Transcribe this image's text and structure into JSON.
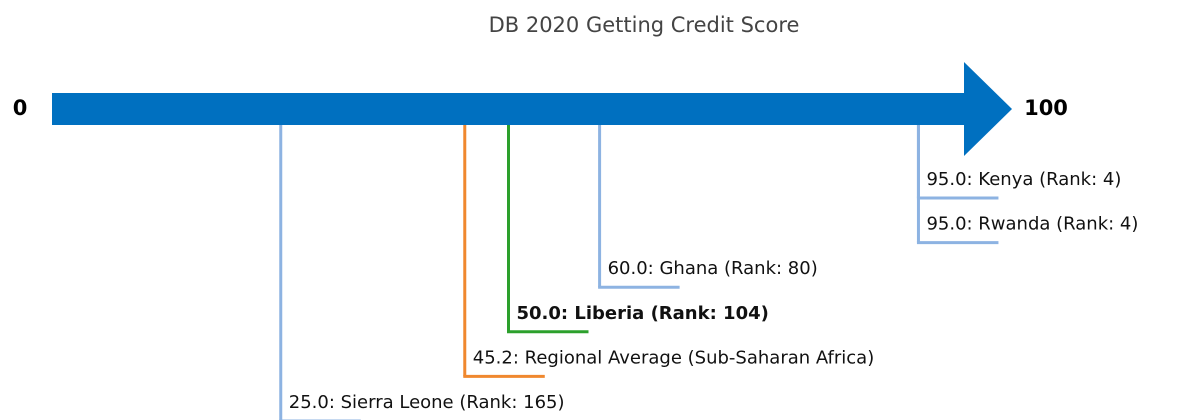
{
  "chart_data": {
    "type": "number-line",
    "title": "DB 2020 Getting Credit Score",
    "xlim": [
      0,
      100
    ],
    "xticks": [
      0,
      100
    ],
    "axis_color": "#0070c0",
    "points": [
      {
        "label": "95.0: Kenya (Rank: 4)",
        "value": 95,
        "color": "#8db3e2",
        "bold": false
      },
      {
        "label": "95.0: Rwanda (Rank: 4)",
        "value": 95,
        "color": "#8db3e2",
        "bold": false
      },
      {
        "label": "60.0: Ghana (Rank: 80)",
        "value": 60,
        "color": "#8db3e2",
        "bold": false
      },
      {
        "label": "50.0: Liberia (Rank: 104)",
        "value": 50,
        "color": "#2ca02c",
        "bold": true
      },
      {
        "label": "45.2: Regional Average (Sub-Saharan Africa)",
        "value": 45.2,
        "color": "#f0882e",
        "bold": false
      },
      {
        "label": "25.0: Sierra Leone (Rank: 165)",
        "value": 25,
        "color": "#8db3e2",
        "bold": false
      }
    ]
  }
}
